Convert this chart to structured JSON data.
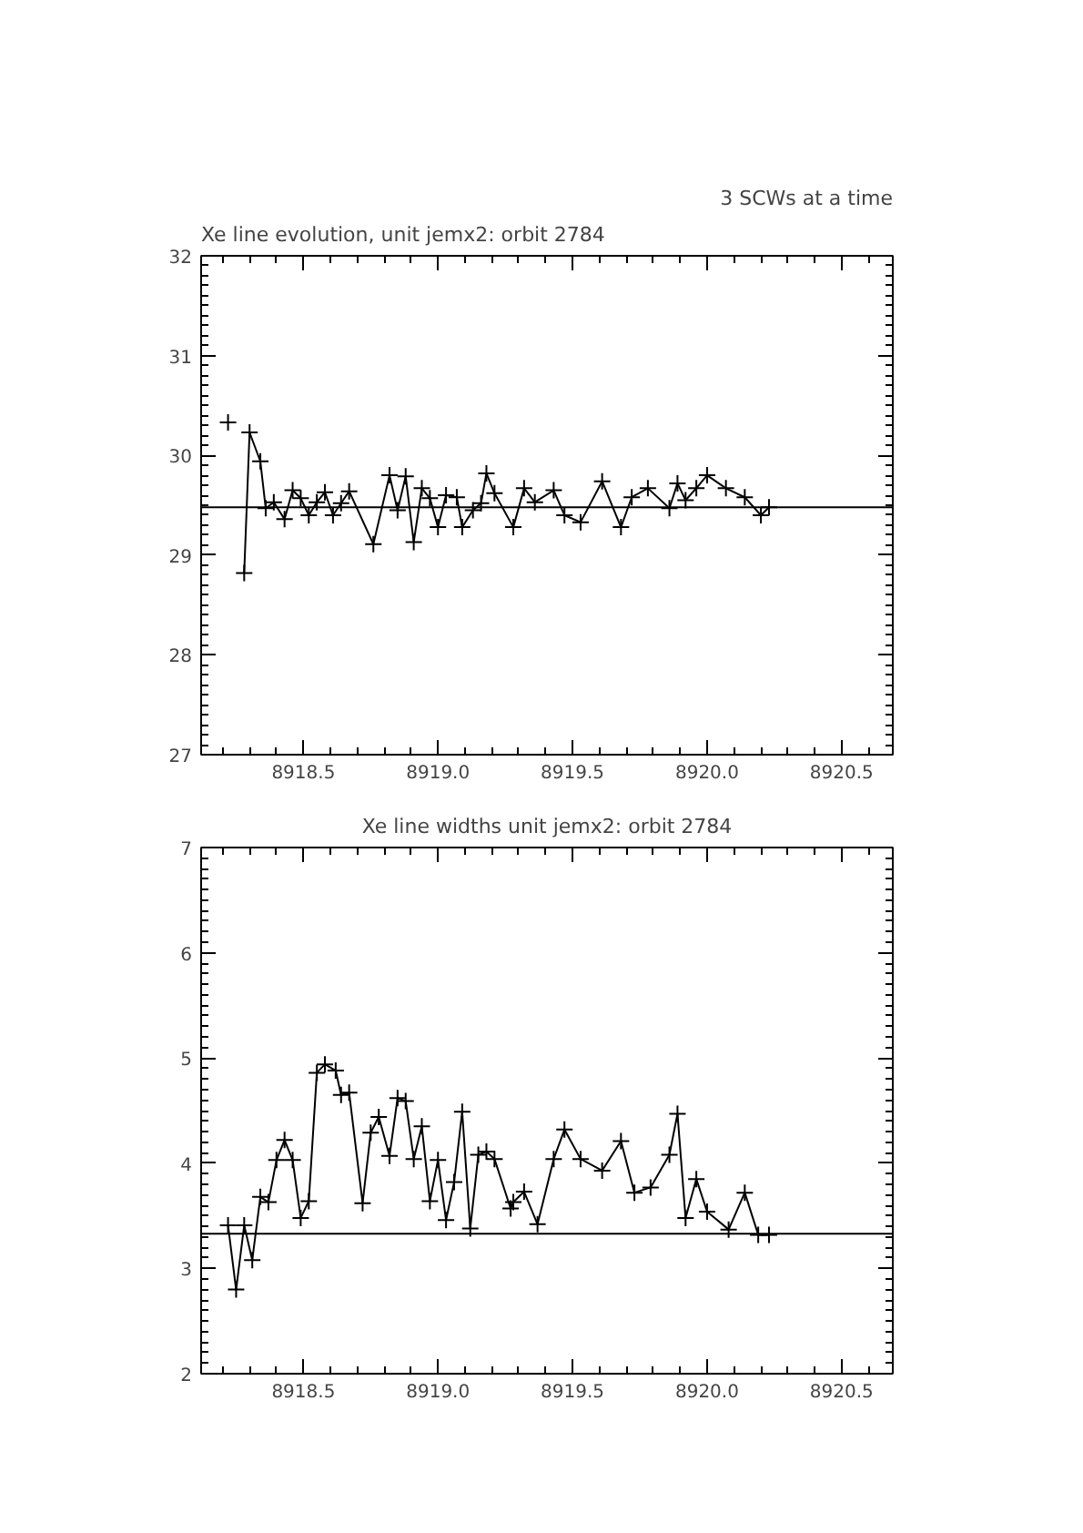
{
  "chart_data": [
    {
      "type": "line",
      "title": "Xe line evolution, unit jemx2: orbit 2784",
      "annotations": [
        "3 SCWs at a time"
      ],
      "marker": "cross",
      "xlim": [
        8918.12,
        8920.69
      ],
      "ylim": [
        27,
        32
      ],
      "xticks": [
        {
          "value": 8918.5,
          "label": "8918.5"
        },
        {
          "value": 8919.0,
          "label": "8919.0"
        },
        {
          "value": 8919.5,
          "label": "8919.5"
        },
        {
          "value": 8920.0,
          "label": "8920.0"
        },
        {
          "value": 8920.5,
          "label": "8920.5"
        }
      ],
      "yticks": [
        27,
        28,
        29,
        30,
        31,
        32
      ],
      "ref_lines": [
        {
          "axis": "y",
          "value": 29.48,
          "color": "#000000"
        }
      ],
      "series": [
        {
          "color": "#000000",
          "x": [
            8918.22,
            8918.24,
            8918.28,
            8918.3,
            8918.34,
            8918.36,
            8918.39,
            8918.43,
            8918.46,
            8918.49,
            8918.52,
            8918.55,
            8918.58,
            8918.61,
            8918.64,
            8918.67,
            8918.76,
            8918.82,
            8918.85,
            8918.88,
            8918.91,
            8918.94,
            8918.97,
            8919.0,
            8919.03,
            8919.07,
            8919.09,
            8919.13,
            8919.16,
            8919.18,
            8919.21,
            8919.28,
            8919.32,
            8919.36,
            8919.43,
            8919.47,
            8919.53,
            8919.61,
            8919.68,
            8919.72,
            8919.78,
            8919.86,
            8919.89,
            8919.92,
            8919.96,
            8920.0,
            8920.07,
            8920.14,
            8920.2,
            8920.23
          ],
          "values": [
            30.33,
            null,
            28.82,
            30.23,
            29.94,
            29.47,
            29.53,
            29.36,
            29.65,
            29.57,
            29.4,
            29.53,
            29.63,
            29.4,
            29.52,
            29.64,
            29.11,
            29.8,
            29.45,
            29.79,
            29.13,
            29.67,
            29.57,
            29.28,
            29.6,
            29.58,
            29.28,
            29.45,
            29.52,
            29.82,
            29.62,
            29.28,
            29.67,
            29.53,
            29.65,
            29.4,
            29.33,
            29.74,
            29.28,
            29.58,
            29.67,
            29.47,
            29.72,
            29.55,
            29.67,
            29.8,
            29.67,
            29.58,
            29.4,
            29.48
          ]
        }
      ]
    },
    {
      "type": "line",
      "title": "Xe line widths unit jemx2: orbit 2784",
      "marker": "cross",
      "xlim": [
        8918.12,
        8920.69
      ],
      "ylim": [
        2,
        7
      ],
      "xticks": [
        {
          "value": 8918.5,
          "label": "8918.5"
        },
        {
          "value": 8919.0,
          "label": "8919.0"
        },
        {
          "value": 8919.5,
          "label": "8919.5"
        },
        {
          "value": 8920.0,
          "label": "8920.0"
        },
        {
          "value": 8920.5,
          "label": "8920.5"
        }
      ],
      "yticks": [
        2,
        3,
        4,
        5,
        6,
        7
      ],
      "ref_lines": [
        {
          "axis": "y",
          "value": 3.33,
          "color": "#000000"
        }
      ],
      "series": [
        {
          "color": "#000000",
          "x": [
            8918.22,
            8918.25,
            8918.28,
            8918.31,
            8918.34,
            8918.37,
            8918.4,
            8918.43,
            8918.46,
            8918.49,
            8918.52,
            8918.55,
            8918.58,
            8918.62,
            8918.64,
            8918.67,
            8918.72,
            8918.75,
            8918.78,
            8918.82,
            8918.85,
            8918.88,
            8918.91,
            8918.94,
            8918.97,
            8919.0,
            8919.03,
            8919.06,
            8919.09,
            8919.12,
            8919.15,
            8919.18,
            8919.21,
            8919.27,
            8919.28,
            8919.32,
            8919.37,
            8919.43,
            8919.47,
            8919.53,
            8919.61,
            8919.68,
            8919.73,
            8919.79,
            8919.86,
            8919.89,
            8919.92,
            8919.96,
            8920.0,
            8920.08,
            8920.14,
            8920.19,
            8920.23
          ],
          "values": [
            3.41,
            2.8,
            3.41,
            3.08,
            3.68,
            3.63,
            4.03,
            4.22,
            4.03,
            3.48,
            3.64,
            4.86,
            4.94,
            4.88,
            4.65,
            4.67,
            3.62,
            4.29,
            4.44,
            4.07,
            4.62,
            4.59,
            4.04,
            4.35,
            3.64,
            4.03,
            3.46,
            3.82,
            4.49,
            3.38,
            4.08,
            4.11,
            4.04,
            3.57,
            3.63,
            3.73,
            3.42,
            4.04,
            4.32,
            4.04,
            3.93,
            4.21,
            3.72,
            3.77,
            4.08,
            4.47,
            3.48,
            3.85,
            3.54,
            3.37,
            3.72,
            3.32,
            3.32
          ]
        }
      ]
    }
  ]
}
